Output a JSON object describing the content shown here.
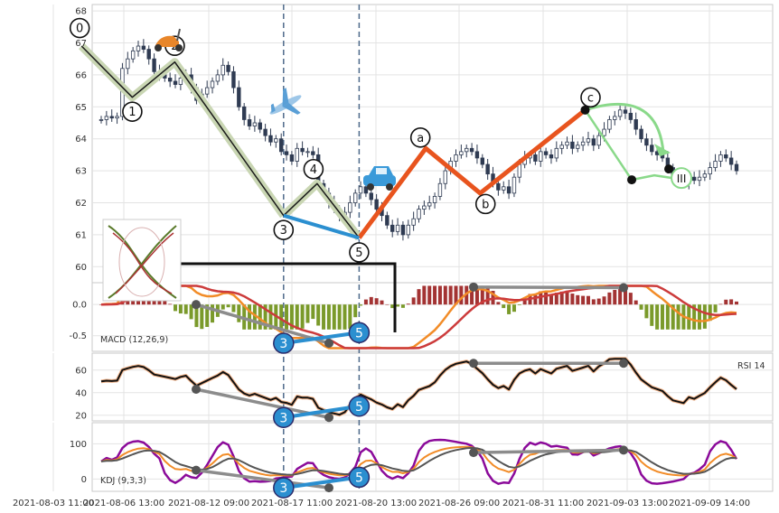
{
  "chart_data": {
    "type": "candlestick",
    "x_ticks": [
      "2021-08-03 11:00",
      "2021-08-06 13:00",
      "2021-08-12 09:00",
      "2021-08-17 11:00",
      "2021-08-20 13:00",
      "2021-08-26 09:00",
      "2021-08-31 11:00",
      "2021-09-03 13:00",
      "2021-09-09 14:00"
    ],
    "price": {
      "yticks": [
        60,
        61,
        62,
        63,
        64,
        65,
        66,
        67,
        68
      ],
      "ylim": [
        59.5,
        68.2
      ],
      "close": [
        64.6,
        64.7,
        64.65,
        64.7,
        66.2,
        66.5,
        66.75,
        66.9,
        66.8,
        66.5,
        66.1,
        66.0,
        65.9,
        65.8,
        65.7,
        65.9,
        66.0,
        65.6,
        65.2,
        65.4,
        65.6,
        65.8,
        66.0,
        66.3,
        66.1,
        65.6,
        65.0,
        64.6,
        64.4,
        64.5,
        64.3,
        64.1,
        63.9,
        64.0,
        63.6,
        63.5,
        63.3,
        63.7,
        63.6,
        63.6,
        63.5,
        62.6,
        62.3,
        62.0,
        61.8,
        61.6,
        61.7,
        62.0,
        62.3,
        62.5,
        62.3,
        62.1,
        61.8,
        61.6,
        61.3,
        61.1,
        61.3,
        61.0,
        61.3,
        61.5,
        61.8,
        61.9,
        62.0,
        62.2,
        62.6,
        63.0,
        63.3,
        63.5,
        63.6,
        63.7,
        63.6,
        63.4,
        63.2,
        62.9,
        62.6,
        62.4,
        62.5,
        62.3,
        62.8,
        63.2,
        63.4,
        63.5,
        63.3,
        63.6,
        63.5,
        63.4,
        63.7,
        63.8,
        63.9,
        63.7,
        63.8,
        63.9,
        64.0,
        63.8,
        64.1,
        64.3,
        64.6,
        64.7,
        64.9,
        64.8,
        64.6,
        64.3,
        64.0,
        63.8,
        63.6,
        63.5,
        63.4,
        63.1,
        62.8,
        62.7,
        62.6,
        62.8,
        62.7,
        62.8,
        62.9,
        63.1,
        63.3,
        63.5,
        63.4,
        63.2,
        63.0
      ],
      "waves": [
        {
          "label": "0",
          "x": 0.4,
          "y": 66.9
        },
        {
          "label": "1",
          "x": 1.1,
          "y": 65.3
        },
        {
          "label": "2",
          "x": 1.6,
          "y": 66.4
        },
        {
          "label": "3",
          "x": 2.9,
          "y": 61.6
        },
        {
          "label": "4",
          "x": 3.3,
          "y": 62.6
        },
        {
          "label": "5",
          "x": 3.8,
          "y": 60.9
        }
      ],
      "abc": [
        {
          "label": "a",
          "x": 4.6,
          "y": 63.7
        },
        {
          "label": "b",
          "x": 5.25,
          "y": 62.3
        },
        {
          "label": "c",
          "x": 6.5,
          "y": 64.9
        }
      ],
      "end_label": "III",
      "end_point": {
        "x": 7.55,
        "y": 63.0
      }
    },
    "macd": {
      "label": "MACD (12,26,9)",
      "yticks": [
        0.0,
        -0.5
      ],
      "ylim": [
        -0.75,
        0.35
      ]
    },
    "rsi": {
      "label": "RSI 14",
      "yticks": [
        20,
        40,
        60
      ],
      "ylim": [
        15,
        75
      ]
    },
    "kdj": {
      "label": "KDJ (9,3,3)",
      "yticks": [
        0,
        100
      ],
      "ylim": [
        -35,
        160
      ]
    },
    "colors": {
      "wave": "#1a1a1a",
      "wave_halo": "#c9d6b3",
      "wave_up": "#e8541e",
      "wave_down": "#2b8fd0",
      "divergence": "#8c8c8c",
      "forecast": "#8ad98a",
      "macd_fast": "#f28c28",
      "macd_slow": "#cc3b3b",
      "hist_pos": "#a33333",
      "hist_neg": "#7a9a2a",
      "kdj_k": "#f28c28",
      "kdj_d": "#555555",
      "kdj_j": "#8b0a9a"
    },
    "icons": [
      "scooter-icon",
      "airplane-icon",
      "car-icon",
      "butterfly-logo-icon"
    ]
  }
}
